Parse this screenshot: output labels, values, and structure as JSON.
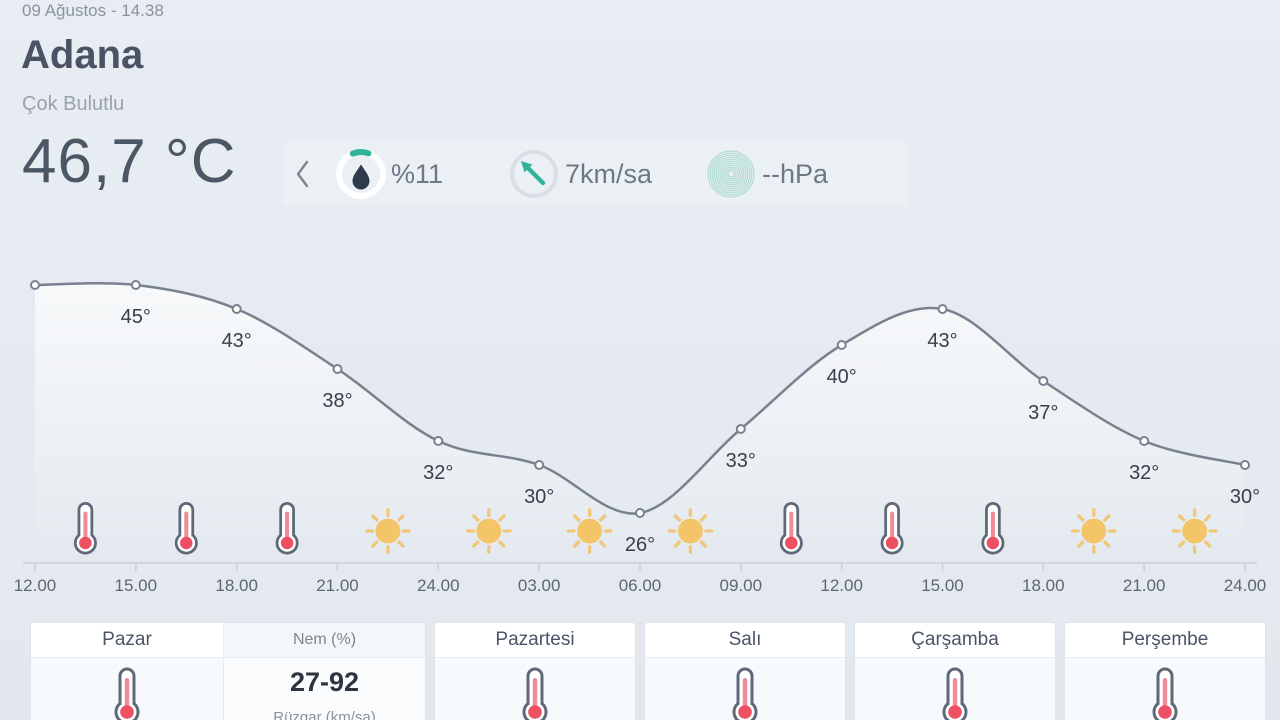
{
  "header": {
    "datetime": "09 Ağustos - 14.38",
    "city": "Adana",
    "condition": "Çok Bulutlu"
  },
  "current": {
    "temperature": "46,7 °C",
    "humidity": "%11",
    "wind": "7km/sa",
    "pressure": "--hPa"
  },
  "chart_data": {
    "type": "line",
    "x": [
      "12.00",
      "15.00",
      "18.00",
      "21.00",
      "24.00",
      "03.00",
      "06.00",
      "09.00",
      "12.00",
      "15.00",
      "18.00",
      "21.00",
      "24.00"
    ],
    "values": [
      45,
      45,
      43,
      38,
      32,
      30,
      26,
      33,
      40,
      43,
      37,
      32,
      30
    ],
    "point_labels": [
      "",
      "45°",
      "43°",
      "38°",
      "32°",
      "30°",
      "26°",
      "33°",
      "40°",
      "43°",
      "37°",
      "32°",
      "30°"
    ],
    "icons": [
      "thermometer",
      "thermometer",
      "thermometer",
      "sun",
      "sun",
      "sun",
      "sun",
      "thermometer",
      "thermometer",
      "thermometer",
      "sun",
      "sun"
    ],
    "line_color": "#78828e",
    "ylim": [
      24,
      48
    ],
    "grid": false,
    "xlabel": "",
    "ylabel": ""
  },
  "forecast": {
    "days": [
      {
        "label": "Pazar"
      },
      {
        "label": "Pazartesi"
      },
      {
        "label": "Salı"
      },
      {
        "label": "Çarşamba"
      },
      {
        "label": "Perşembe"
      }
    ],
    "details": {
      "humidity_label": "Nem (%)",
      "humidity_value": "27-92",
      "wind_label": "Rüzgar (km/sa)"
    }
  },
  "colors": {
    "accent_teal": "#2fb39b",
    "thermometer_red": "#ee5063",
    "sun_yellow": "#f4c468"
  }
}
